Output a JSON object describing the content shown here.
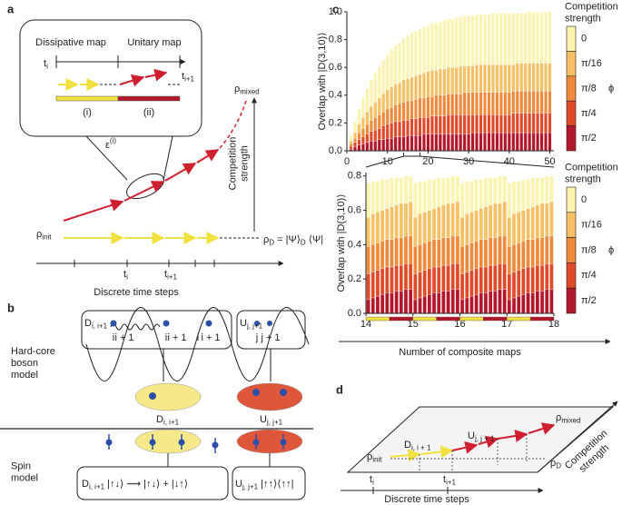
{
  "panels": {
    "a": {
      "label": "a",
      "dissipative": "Dissipative map",
      "unitary": "Unitary map",
      "t_i": {
        "text": "t",
        "sub": "i"
      },
      "t_i1": {
        "text": "t",
        "sub": "i+1"
      },
      "stage1": "(i)",
      "stage2": "(ii)",
      "epsilon": {
        "text": "ε",
        "sup": "(i)"
      },
      "rho_mixed": {
        "text": "ρ",
        "sub": "mixed"
      },
      "competition": [
        "Competition",
        "strength"
      ],
      "rho_init": {
        "text": "ρ",
        "sub": "init"
      },
      "rho_d": {
        "text": "ρ",
        "sub": "D",
        "tail": " = |Ψ⟩",
        "sub2": "D",
        "tail2": " ⟨Ψ|"
      },
      "axis_t_i": {
        "text": "t",
        "sub": "i"
      },
      "axis_t_i1": {
        "text": "t",
        "sub": "i+1"
      },
      "xlabel": "Discrete time steps"
    },
    "b": {
      "label": "b",
      "box_d": {
        "text": "D",
        "sub": "i, i+1"
      },
      "box_u": {
        "text": "U",
        "sub": "j, j+1"
      },
      "box_d_sites": [
        "i",
        "i + 1",
        "i",
        "i + 1",
        "i",
        "i + 1"
      ],
      "box_u_sites": [
        "j",
        "j + 1"
      ],
      "boson_model": [
        "Hard-core",
        "boson",
        "model"
      ],
      "site_d": {
        "text": "D",
        "sub": "i, i+1"
      },
      "site_u": {
        "text": "U",
        "sub": "j, j+1"
      },
      "spin_model": [
        "Spin",
        "model"
      ],
      "spin_d": {
        "text": "D",
        "sub": "i, i+1",
        "tail": " |↑↓⟩ ⟿ |↑↓⟩ + |↓↑⟩"
      },
      "spin_u": {
        "text": "U",
        "sub": "j, j+1",
        "tail": " |↑↑⟩⟨↑↑|"
      }
    },
    "c": {
      "label": "c"
    },
    "d": {
      "label": "d",
      "rho_mixed": {
        "text": "ρ",
        "sub": "mixed"
      },
      "u": {
        "text": "U",
        "sub": "j, j + 1"
      },
      "dmap": {
        "text": "D",
        "sub": "i, i + 1"
      },
      "rho_init": {
        "text": "ρ",
        "sub": "init"
      },
      "rho_d": {
        "text": "ρ",
        "sub": "D"
      },
      "t_i": {
        "text": "t",
        "sub": "i"
      },
      "t_i1": {
        "text": "t",
        "sub": "i+1"
      },
      "competition": [
        "Competition",
        "strength"
      ],
      "xlabel": "Discrete time steps"
    }
  },
  "chart_data": [
    {
      "type": "bar",
      "ylabel": "Overlap with |D(3,10)⟩",
      "legend_title": [
        "Competition",
        "strength"
      ],
      "legend_symbol": "ϕ",
      "x": [
        1,
        2,
        3,
        4,
        5,
        6,
        7,
        8,
        9,
        10,
        11,
        12,
        13,
        14,
        15,
        16,
        17,
        18,
        19,
        20,
        21,
        22,
        23,
        24,
        25,
        26,
        27,
        28,
        29,
        30,
        31,
        32,
        33,
        34,
        35,
        36,
        37,
        38,
        39,
        40,
        41,
        42,
        43,
        44,
        45,
        46,
        47,
        48,
        49,
        50
      ],
      "xlim": [
        0,
        51
      ],
      "xticks": [
        0,
        10,
        20,
        30,
        40,
        50
      ],
      "ylim": [
        0,
        1
      ],
      "yticks": [
        {
          "value": 0,
          "label": "0.0"
        },
        {
          "value": 0.2,
          "label": "0.2"
        },
        {
          "value": 0.4,
          "label": "0.4"
        },
        {
          "value": 0.6,
          "label": "0.6"
        },
        {
          "value": 0.8,
          "label": "0.8"
        },
        {
          "value": 1,
          "label": "1.0"
        }
      ],
      "series": [
        {
          "name": "0",
          "color": "#fbf3b0",
          "values": [
            0.11,
            0.21,
            0.3,
            0.38,
            0.45,
            0.51,
            0.56,
            0.61,
            0.65,
            0.69,
            0.73,
            0.76,
            0.78,
            0.81,
            0.83,
            0.85,
            0.86,
            0.88,
            0.89,
            0.9,
            0.92,
            0.92,
            0.93,
            0.94,
            0.95,
            0.95,
            0.96,
            0.96,
            0.97,
            0.97,
            0.97,
            0.98,
            0.98,
            0.98,
            0.98,
            0.99,
            0.99,
            0.99,
            0.99,
            0.99,
            0.99,
            0.99,
            0.99,
            0.99,
            1.0,
            1.0,
            1.0,
            1.0,
            1.0,
            1.0
          ]
        },
        {
          "name": "π/16",
          "color": "#f7c064",
          "values": [
            0.07,
            0.13,
            0.19,
            0.24,
            0.28,
            0.32,
            0.35,
            0.38,
            0.41,
            0.44,
            0.46,
            0.48,
            0.49,
            0.51,
            0.52,
            0.53,
            0.54,
            0.55,
            0.56,
            0.57,
            0.58,
            0.58,
            0.59,
            0.59,
            0.6,
            0.6,
            0.6,
            0.61,
            0.61,
            0.61,
            0.61,
            0.62,
            0.62,
            0.62,
            0.62,
            0.62,
            0.62,
            0.62,
            0.62,
            0.62,
            0.62,
            0.63,
            0.63,
            0.63,
            0.63,
            0.63,
            0.63,
            0.63,
            0.63,
            0.63
          ]
        },
        {
          "name": "π/8",
          "color": "#ef8a3c",
          "values": [
            0.05,
            0.09,
            0.13,
            0.16,
            0.19,
            0.22,
            0.24,
            0.26,
            0.28,
            0.3,
            0.31,
            0.33,
            0.34,
            0.35,
            0.36,
            0.36,
            0.37,
            0.38,
            0.38,
            0.39,
            0.39,
            0.4,
            0.4,
            0.4,
            0.41,
            0.41,
            0.41,
            0.41,
            0.42,
            0.42,
            0.42,
            0.42,
            0.42,
            0.42,
            0.42,
            0.42,
            0.42,
            0.42,
            0.42,
            0.42,
            0.43,
            0.43,
            0.43,
            0.43,
            0.43,
            0.43,
            0.43,
            0.43,
            0.43,
            0.43
          ]
        },
        {
          "name": "π/4",
          "color": "#df4a2b",
          "values": [
            0.03,
            0.06,
            0.08,
            0.1,
            0.12,
            0.14,
            0.15,
            0.16,
            0.18,
            0.19,
            0.2,
            0.21,
            0.21,
            0.22,
            0.22,
            0.23,
            0.23,
            0.24,
            0.24,
            0.24,
            0.25,
            0.25,
            0.25,
            0.25,
            0.26,
            0.26,
            0.26,
            0.26,
            0.26,
            0.26,
            0.26,
            0.26,
            0.26,
            0.26,
            0.26,
            0.26,
            0.26,
            0.26,
            0.26,
            0.26,
            0.27,
            0.27,
            0.27,
            0.27,
            0.27,
            0.27,
            0.27,
            0.27,
            0.27,
            0.27
          ]
        },
        {
          "name": "π/2",
          "color": "#b3172c",
          "values": [
            0.01,
            0.03,
            0.04,
            0.05,
            0.06,
            0.07,
            0.07,
            0.08,
            0.08,
            0.09,
            0.09,
            0.1,
            0.1,
            0.1,
            0.11,
            0.11,
            0.11,
            0.11,
            0.12,
            0.12,
            0.12,
            0.12,
            0.12,
            0.12,
            0.12,
            0.12,
            0.12,
            0.12,
            0.12,
            0.12,
            0.13,
            0.13,
            0.13,
            0.13,
            0.13,
            0.13,
            0.13,
            0.13,
            0.13,
            0.13,
            0.13,
            0.13,
            0.13,
            0.13,
            0.13,
            0.13,
            0.13,
            0.13,
            0.13,
            0.13
          ]
        }
      ]
    },
    {
      "type": "bar",
      "ylabel": "Overlap with |D(3,10)⟩",
      "xlabel": "Number of composite maps",
      "legend_title": [
        "Competition",
        "strength"
      ],
      "legend_symbol": "ϕ",
      "x": [
        14.05,
        14.15,
        14.25,
        14.35,
        14.45,
        14.55,
        14.65,
        14.75,
        14.85,
        14.95,
        15.05,
        15.15,
        15.25,
        15.35,
        15.45,
        15.55,
        15.65,
        15.75,
        15.85,
        15.95,
        16.05,
        16.15,
        16.25,
        16.35,
        16.45,
        16.55,
        16.65,
        16.75,
        16.85,
        16.95,
        17.05,
        17.15,
        17.25,
        17.35,
        17.45,
        17.55,
        17.65,
        17.75,
        17.85,
        17.95
      ],
      "xlim": [
        14,
        18
      ],
      "xticks": [
        14,
        15,
        16,
        17,
        18
      ],
      "ylim": [
        0,
        0.82
      ],
      "yticks": [
        {
          "value": 0,
          "label": "0.0"
        },
        {
          "value": 0.2,
          "label": "0.2"
        },
        {
          "value": 0.4,
          "label": "0.4"
        },
        {
          "value": 0.6,
          "label": "0.6"
        },
        {
          "value": 0.8,
          "label": "0.8"
        }
      ],
      "series": [
        {
          "name": "0",
          "color": "#fbf3b0",
          "values": [
            0.76,
            0.77,
            0.77,
            0.78,
            0.78,
            0.79,
            0.79,
            0.79,
            0.8,
            0.8,
            0.76,
            0.77,
            0.77,
            0.78,
            0.78,
            0.79,
            0.79,
            0.79,
            0.8,
            0.8,
            0.76,
            0.77,
            0.77,
            0.78,
            0.78,
            0.79,
            0.79,
            0.79,
            0.8,
            0.8,
            0.76,
            0.77,
            0.77,
            0.78,
            0.78,
            0.79,
            0.79,
            0.79,
            0.8,
            0.8
          ]
        },
        {
          "name": "π/16",
          "color": "#f7c064",
          "values": [
            0.56,
            0.58,
            0.59,
            0.6,
            0.61,
            0.62,
            0.63,
            0.64,
            0.64,
            0.65,
            0.56,
            0.58,
            0.59,
            0.6,
            0.61,
            0.62,
            0.63,
            0.64,
            0.64,
            0.65,
            0.56,
            0.58,
            0.59,
            0.6,
            0.61,
            0.62,
            0.63,
            0.64,
            0.64,
            0.65,
            0.56,
            0.58,
            0.59,
            0.6,
            0.61,
            0.62,
            0.63,
            0.64,
            0.64,
            0.65
          ]
        },
        {
          "name": "π/8",
          "color": "#ef8a3c",
          "values": [
            0.39,
            0.4,
            0.41,
            0.42,
            0.43,
            0.43,
            0.44,
            0.44,
            0.45,
            0.45,
            0.39,
            0.4,
            0.41,
            0.42,
            0.43,
            0.43,
            0.44,
            0.44,
            0.45,
            0.45,
            0.39,
            0.4,
            0.41,
            0.42,
            0.43,
            0.43,
            0.44,
            0.44,
            0.45,
            0.45,
            0.39,
            0.4,
            0.41,
            0.42,
            0.43,
            0.43,
            0.44,
            0.44,
            0.45,
            0.45
          ]
        },
        {
          "name": "π/4",
          "color": "#df4a2b",
          "values": [
            0.23,
            0.24,
            0.25,
            0.26,
            0.27,
            0.27,
            0.28,
            0.28,
            0.29,
            0.29,
            0.23,
            0.24,
            0.25,
            0.26,
            0.27,
            0.27,
            0.28,
            0.28,
            0.29,
            0.29,
            0.23,
            0.24,
            0.25,
            0.26,
            0.27,
            0.27,
            0.28,
            0.28,
            0.29,
            0.29,
            0.23,
            0.24,
            0.25,
            0.26,
            0.27,
            0.27,
            0.28,
            0.28,
            0.29,
            0.29
          ]
        },
        {
          "name": "π/2",
          "color": "#b3172c",
          "values": [
            0.08,
            0.09,
            0.1,
            0.11,
            0.12,
            0.12,
            0.13,
            0.13,
            0.14,
            0.14,
            0.08,
            0.09,
            0.1,
            0.11,
            0.12,
            0.12,
            0.13,
            0.13,
            0.14,
            0.14,
            0.08,
            0.09,
            0.1,
            0.11,
            0.12,
            0.12,
            0.13,
            0.13,
            0.14,
            0.14,
            0.08,
            0.09,
            0.1,
            0.11,
            0.12,
            0.12,
            0.13,
            0.13,
            0.14,
            0.14
          ]
        }
      ]
    }
  ]
}
